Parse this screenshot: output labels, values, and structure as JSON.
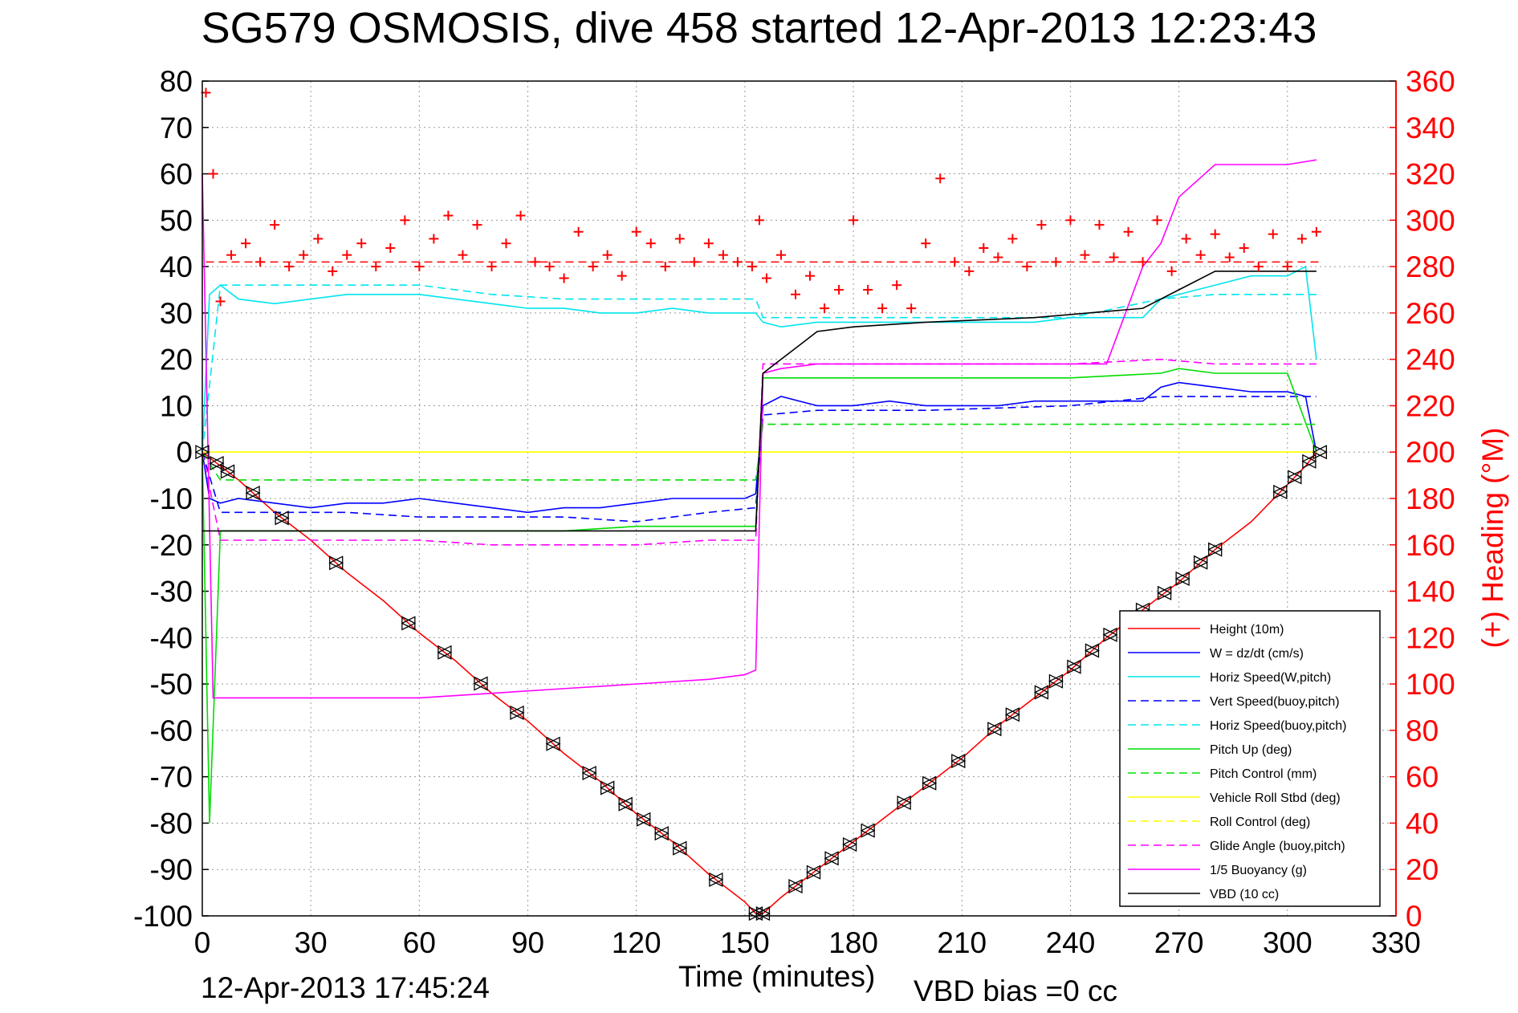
{
  "chart_data": {
    "type": "line",
    "title": "SG579 OSMOSIS, dive 458 started 12-Apr-2013 12:23:43",
    "xlabel": "Time (minutes)",
    "ylabel_right": "(+) Heading (°M)",
    "footer_timestamp": "12-Apr-2013 17:45:24",
    "footer_note": "VBD bias =0 cc",
    "xlim": [
      0,
      330
    ],
    "ylim_left": [
      -100,
      80
    ],
    "ylim_right": [
      0,
      360
    ],
    "x_ticks": [
      "0",
      "30",
      "60",
      "90",
      "120",
      "150",
      "180",
      "210",
      "240",
      "270",
      "300",
      "330"
    ],
    "y_ticks_left": [
      "80",
      "70",
      "60",
      "50",
      "40",
      "30",
      "20",
      "10",
      "0",
      "-10",
      "-20",
      "-30",
      "-40",
      "-50",
      "-60",
      "-70",
      "-80",
      "-90",
      "-100"
    ],
    "y_ticks_right": [
      "360",
      "340",
      "320",
      "300",
      "280",
      "260",
      "240",
      "220",
      "200",
      "180",
      "160",
      "140",
      "120",
      "100",
      "80",
      "60",
      "40",
      "20",
      "0"
    ],
    "grid": true,
    "legend_position": "bottom-right",
    "series": [
      {
        "name": "Height (10m)",
        "color": "#ff0000",
        "style": "solid",
        "x": [
          0,
          10,
          20,
          30,
          40,
          50,
          60,
          70,
          80,
          90,
          100,
          110,
          120,
          130,
          140,
          150,
          153,
          155,
          160,
          170,
          180,
          190,
          200,
          210,
          220,
          230,
          240,
          250,
          260,
          270,
          280,
          290,
          300,
          305,
          308
        ],
        "values": [
          0,
          -6,
          -13,
          -19,
          -26,
          -32,
          -39,
          -45,
          -52,
          -58,
          -65,
          -71,
          -78,
          -84,
          -91,
          -97,
          -99.5,
          -99.5,
          -96,
          -90,
          -84,
          -78,
          -72,
          -66,
          -59,
          -53,
          -47,
          -40,
          -34,
          -28,
          -21,
          -15,
          -7,
          -3,
          0
        ]
      },
      {
        "name": "W = dz/dt (cm/s)",
        "color": "#0000ff",
        "style": "solid",
        "x": [
          0,
          2,
          5,
          10,
          20,
          30,
          40,
          50,
          60,
          70,
          80,
          90,
          100,
          110,
          120,
          130,
          140,
          150,
          153,
          155,
          160,
          170,
          180,
          190,
          200,
          210,
          220,
          230,
          240,
          250,
          260,
          265,
          270,
          280,
          290,
          300,
          305,
          308
        ],
        "values": [
          0,
          -10,
          -11,
          -10,
          -11,
          -12,
          -11,
          -11,
          -10,
          -11,
          -12,
          -13,
          -12,
          -12,
          -11,
          -10,
          -10,
          -10,
          -9,
          10,
          12,
          10,
          10,
          11,
          10,
          10,
          10,
          11,
          11,
          11,
          11,
          14,
          15,
          14,
          13,
          13,
          12,
          0
        ]
      },
      {
        "name": "Horiz Speed(W,pitch)",
        "color": "#00e5ee",
        "style": "solid",
        "x": [
          0,
          2,
          5,
          10,
          20,
          30,
          40,
          50,
          60,
          70,
          80,
          90,
          100,
          110,
          120,
          130,
          140,
          150,
          153,
          155,
          160,
          170,
          180,
          190,
          200,
          210,
          220,
          230,
          240,
          250,
          260,
          265,
          270,
          280,
          290,
          300,
          305,
          308
        ],
        "values": [
          0,
          34,
          36,
          33,
          32,
          33,
          34,
          34,
          34,
          33,
          32,
          31,
          31,
          30,
          30,
          31,
          30,
          30,
          30,
          28,
          27,
          28,
          28,
          28,
          28,
          28,
          28,
          28,
          29,
          29,
          29,
          33,
          34,
          36,
          38,
          38,
          40,
          20
        ]
      },
      {
        "name": "Vert Speed(buoy,pitch)",
        "color": "#0000ff",
        "style": "dashed",
        "x": [
          0,
          5,
          20,
          40,
          60,
          80,
          100,
          120,
          140,
          153,
          155,
          170,
          200,
          240,
          265,
          280,
          308
        ],
        "values": [
          0,
          -13,
          -13,
          -13,
          -14,
          -14,
          -14,
          -15,
          -13,
          -12,
          8,
          9,
          9,
          10,
          12,
          12,
          12
        ]
      },
      {
        "name": "Horiz Speed(buoy,pitch)",
        "color": "#00e5ee",
        "style": "dashed",
        "x": [
          0,
          5,
          20,
          40,
          60,
          80,
          100,
          120,
          140,
          153,
          155,
          170,
          200,
          240,
          265,
          280,
          308
        ],
        "values": [
          0,
          36,
          36,
          36,
          36,
          34,
          33,
          33,
          33,
          33,
          29,
          29,
          29,
          29,
          33,
          34,
          34
        ]
      },
      {
        "name": "Pitch Up (deg)",
        "color": "#00dd00",
        "style": "solid",
        "x": [
          0,
          2,
          5,
          20,
          40,
          60,
          80,
          100,
          120,
          140,
          153,
          155,
          160,
          170,
          200,
          240,
          265,
          270,
          280,
          300,
          308
        ],
        "values": [
          0,
          -80,
          -17,
          -17,
          -17,
          -17,
          -17,
          -17,
          -16,
          -16,
          -16,
          16,
          16,
          16,
          16,
          16,
          17,
          18,
          17,
          17,
          0
        ]
      },
      {
        "name": "Pitch Control (mm)",
        "color": "#00dd00",
        "style": "dashed",
        "x": [
          0,
          5,
          20,
          40,
          60,
          80,
          100,
          120,
          140,
          153,
          155,
          170,
          200,
          240,
          265,
          280,
          308
        ],
        "values": [
          0,
          -6,
          -6,
          -6,
          -6,
          -6,
          -6,
          -6,
          -6,
          -6,
          6,
          6,
          6,
          6,
          6,
          6,
          6
        ]
      },
      {
        "name": "Vehicle Roll Stbd (deg)",
        "color": "#ffff00",
        "style": "solid",
        "x": [
          0,
          5,
          10,
          20,
          40,
          60,
          80,
          100,
          120,
          140,
          153,
          155,
          170,
          200,
          240,
          270,
          300,
          308
        ],
        "values": [
          0,
          0,
          0,
          0,
          0,
          0,
          0,
          0,
          0,
          0,
          0,
          0,
          0,
          0,
          0,
          0,
          0,
          0
        ]
      },
      {
        "name": "Roll Control (deg)",
        "color": "#ffff00",
        "style": "dashed",
        "x": [
          0,
          5,
          308
        ],
        "values": [
          0,
          0,
          0
        ]
      },
      {
        "name": "Glide Angle (buoy,pitch)",
        "color": "#ff00ff",
        "style": "dashed",
        "x": [
          0,
          5,
          20,
          40,
          60,
          80,
          100,
          120,
          140,
          153,
          155,
          170,
          200,
          240,
          265,
          280,
          308
        ],
        "values": [
          0,
          -19,
          -19,
          -19,
          -19,
          -20,
          -20,
          -20,
          -19,
          -19,
          19,
          19,
          19,
          19,
          20,
          19,
          19
        ]
      },
      {
        "name": "1/5 Buoyancy (g)",
        "color": "#ff00ff",
        "style": "solid",
        "x": [
          0,
          3,
          5,
          30,
          60,
          80,
          100,
          120,
          140,
          150,
          153,
          155,
          160,
          170,
          180,
          200,
          230,
          250,
          260,
          265,
          270,
          280,
          300,
          308
        ],
        "values": [
          60,
          -53,
          -53,
          -53,
          -53,
          -52,
          -51,
          -50,
          -49,
          -48,
          -47,
          17,
          18,
          19,
          19,
          19,
          19,
          19,
          40,
          45,
          55,
          62,
          62,
          63
        ]
      },
      {
        "name": "VBD (10 cc)",
        "color": "#000000",
        "style": "solid",
        "x": [
          0,
          2,
          5,
          60,
          120,
          150,
          153,
          155,
          160,
          165,
          170,
          180,
          200,
          230,
          260,
          270,
          280,
          300,
          308
        ],
        "values": [
          -17,
          -17,
          -17,
          -17,
          -17,
          -17,
          -17,
          17,
          20,
          23,
          26,
          27,
          28,
          29,
          31,
          35,
          39,
          39,
          39
        ]
      }
    ],
    "heading_series": {
      "name": "(+) Heading (°M)",
      "color": "#ff0000",
      "marker": "+",
      "x": [
        1,
        3,
        5,
        8,
        12,
        16,
        20,
        24,
        28,
        32,
        36,
        40,
        44,
        48,
        52,
        56,
        60,
        64,
        68,
        72,
        76,
        80,
        84,
        88,
        92,
        96,
        100,
        104,
        108,
        112,
        116,
        120,
        124,
        128,
        132,
        136,
        140,
        144,
        148,
        152,
        154,
        156,
        160,
        164,
        168,
        172,
        176,
        180,
        184,
        188,
        192,
        196,
        200,
        204,
        208,
        212,
        216,
        220,
        224,
        228,
        232,
        236,
        240,
        244,
        248,
        252,
        256,
        260,
        264,
        268,
        272,
        276,
        280,
        284,
        288,
        292,
        296,
        300,
        304,
        308
      ],
      "values": [
        355,
        320,
        265,
        285,
        290,
        282,
        298,
        280,
        285,
        292,
        278,
        285,
        290,
        280,
        288,
        300,
        280,
        292,
        302,
        285,
        298,
        280,
        290,
        302,
        282,
        280,
        275,
        295,
        280,
        285,
        276,
        295,
        290,
        280,
        292,
        282,
        290,
        285,
        282,
        280,
        300,
        275,
        285,
        268,
        276,
        262,
        270,
        300,
        270,
        262,
        272,
        262,
        290,
        318,
        282,
        278,
        288,
        284,
        292,
        280,
        298,
        282,
        300,
        285,
        298,
        284,
        295,
        282,
        300,
        278,
        292,
        285,
        294,
        284,
        288,
        280,
        294,
        280,
        292,
        295
      ]
    },
    "heading_reference": {
      "value": 282,
      "color": "#ff0000",
      "style": "dashed"
    },
    "dive_markers": {
      "color": "#000000",
      "x": [
        0,
        4,
        7,
        14,
        22,
        37,
        57,
        67,
        77,
        87,
        97,
        107,
        112,
        117,
        122,
        127,
        132,
        142,
        153,
        155,
        164,
        169,
        174,
        179,
        184,
        194,
        201,
        209,
        219,
        224,
        232,
        236,
        241,
        246,
        251,
        260,
        266,
        271,
        276,
        280,
        298,
        302,
        306,
        309
      ]
    }
  }
}
